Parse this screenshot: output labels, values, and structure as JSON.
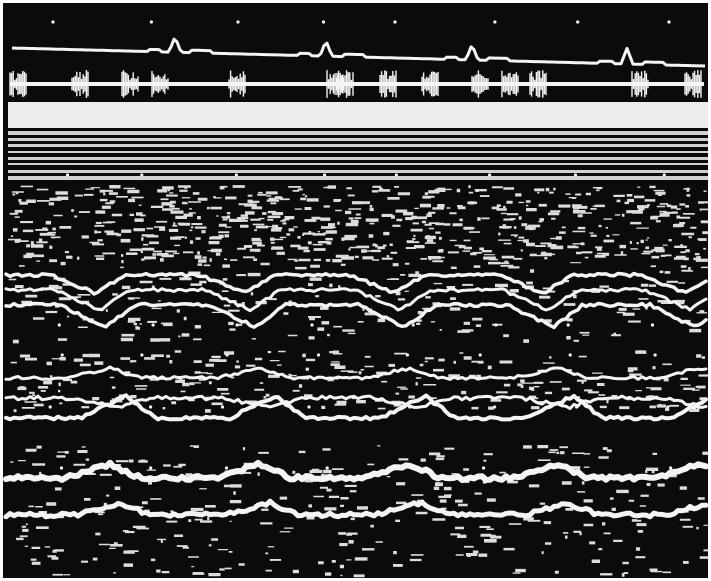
{
  "image": {
    "kind": "m-mode echocardiogram print",
    "palette": {
      "background": "#0b0b0b",
      "trace": "#f4f4f4",
      "border": "#ffffff"
    },
    "ecg": {
      "peak_count": 4
    },
    "phonocardiogram": {
      "burst_count": 14
    },
    "reference_bands": 9,
    "echo_traces": 8
  }
}
